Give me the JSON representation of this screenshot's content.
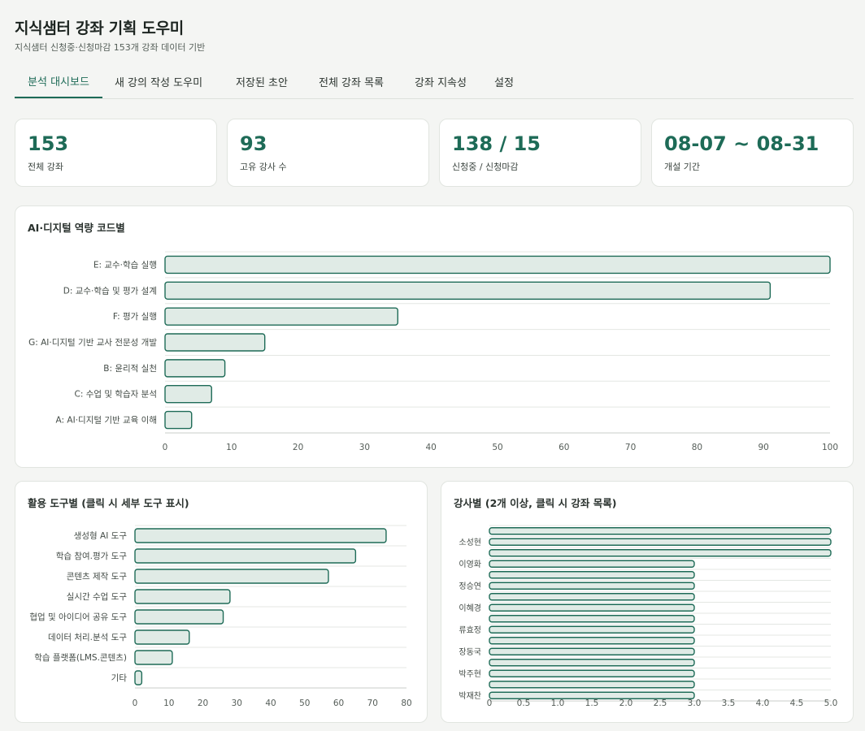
{
  "header": {
    "title": "지식샘터 강좌 기획 도우미",
    "subtitle": "지식샘터 신청중·신청마감 153개 강좌 데이터 기반"
  },
  "tabs": [
    {
      "label": "분석 대시보드",
      "active": true
    },
    {
      "label": "새 강의 작성 도우미",
      "active": false
    },
    {
      "label": "저장된 초안",
      "active": false
    },
    {
      "label": "전체 강좌 목록",
      "active": false
    },
    {
      "label": "강좌 지속성",
      "active": false
    },
    {
      "label": "설정",
      "active": false
    }
  ],
  "stats": [
    {
      "value": "153",
      "label": "전체 강좌"
    },
    {
      "value": "93",
      "label": "고유 강사 수"
    },
    {
      "value": "138 / 15",
      "label": "신청중 / 신청마감"
    },
    {
      "value": "08-07 ~ 08-31",
      "label": "개설 기간"
    }
  ],
  "colors": {
    "accent": "#1e6b57",
    "bar_fill": "#e0ebe6",
    "bar_stroke": "#1e6b57"
  },
  "chart_data": [
    {
      "type": "bar",
      "orientation": "horizontal",
      "title": "AI·디지털 역량 코드별",
      "categories": [
        "E: 교수·학습 실행",
        "D: 교수·학습 및 평가 설계",
        "F: 평가 실행",
        "G: AI·디지털 기반 교사 전문성 개발",
        "B: 윤리적 실천",
        "C: 수업 및 학습자 분석",
        "A: AI·디지털 기반 교육 이해"
      ],
      "values": [
        100,
        91,
        35,
        15,
        9,
        7,
        4
      ],
      "xlim": [
        0,
        100
      ],
      "ticks": [
        0,
        10,
        20,
        30,
        40,
        50,
        60,
        70,
        80,
        90,
        100
      ],
      "grid": true
    },
    {
      "type": "bar",
      "orientation": "horizontal",
      "title": "활용 도구별 (클릭 시 세부 도구 표시)",
      "categories": [
        "생성형 AI 도구",
        "학습 참여.평가 도구",
        "콘텐츠 제작 도구",
        "실시간 수업 도구",
        "협업 및 아이디어 공유 도구",
        "데이터 처리.분석 도구",
        "학습 플랫폼(LMS.콘텐츠)",
        "기타"
      ],
      "values": [
        74,
        65,
        57,
        28,
        26,
        16,
        11,
        2
      ],
      "xlim": [
        0,
        80
      ],
      "ticks": [
        0,
        10,
        20,
        30,
        40,
        50,
        60,
        70,
        80
      ],
      "grid": true
    },
    {
      "type": "bar",
      "orientation": "horizontal",
      "title": "강사별 (2개 이상, 클릭 시 강좌 목록)",
      "categories": [
        "",
        "소성현",
        "",
        "이영화",
        "",
        "정승연",
        "",
        "이혜경",
        "",
        "류효정",
        "",
        "장동국",
        "",
        "박주현",
        "",
        "박재찬"
      ],
      "values": [
        5,
        5,
        5,
        3,
        3,
        3,
        3,
        3,
        3,
        3,
        3,
        3,
        3,
        3,
        3,
        3
      ],
      "xlim": [
        0,
        5
      ],
      "ticks": [
        "0",
        "0.5",
        "1.0",
        "1.5",
        "2.0",
        "2.5",
        "3.0",
        "3.5",
        "4.0",
        "4.5",
        "5.0"
      ],
      "grid": true
    }
  ]
}
